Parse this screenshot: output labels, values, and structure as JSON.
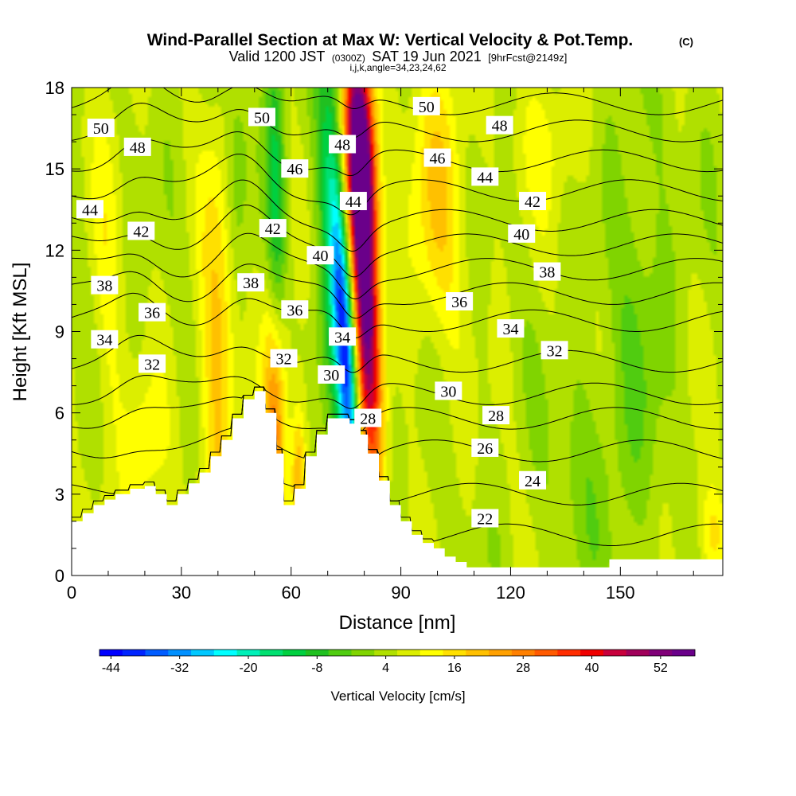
{
  "title": {
    "main": "Wind-Parallel Section at Max W: Vertical Velocity & Pot.Temp.",
    "copyright": "(C)",
    "valid_prefix": "Valid 1200 JST",
    "valid_utc": "(0300Z)",
    "valid_date": "SAT 19 Jun 2021",
    "forecast": "[9hrFcst@2149z]",
    "indices": "i,j,k,angle=34,23,24,62"
  },
  "chart_data": {
    "type": "heatmap",
    "xlabel": "Distance [nm]",
    "ylabel": "Height [Kft MSL]",
    "xlim": [
      0,
      178
    ],
    "ylim": [
      0,
      18
    ],
    "x_ticks": [
      0,
      30,
      60,
      90,
      120,
      150
    ],
    "y_ticks": [
      0,
      3,
      6,
      9,
      12,
      15,
      18
    ],
    "colorbar": {
      "label": "Vertical Velocity [cm/s]",
      "tick_labels": [
        "-44",
        "-32",
        "-20",
        "-8",
        "4",
        "16",
        "28",
        "40",
        "52"
      ],
      "colors": [
        "#0000ff",
        "#0024ff",
        "#005cff",
        "#0090ff",
        "#00c8ff",
        "#00ffff",
        "#00f0b8",
        "#00e070",
        "#00d040",
        "#20c020",
        "#50cc10",
        "#80d400",
        "#b0e000",
        "#dcee00",
        "#ffff00",
        "#ffe000",
        "#ffc000",
        "#ffa000",
        "#ff8000",
        "#ff5a00",
        "#ff2d00",
        "#f00000",
        "#c8003c",
        "#a0005a",
        "#800078",
        "#6a008a"
      ]
    },
    "terrain_kft": [
      [
        0,
        2.0
      ],
      [
        3,
        2.0
      ],
      [
        3,
        2.3
      ],
      [
        6,
        2.3
      ],
      [
        6,
        2.6
      ],
      [
        9,
        2.6
      ],
      [
        9,
        2.8
      ],
      [
        12,
        2.8
      ],
      [
        12,
        3.0
      ],
      [
        16,
        3.0
      ],
      [
        16,
        3.2
      ],
      [
        20,
        3.2
      ],
      [
        20,
        3.3
      ],
      [
        23,
        3.3
      ],
      [
        23,
        3.0
      ],
      [
        26,
        3.0
      ],
      [
        26,
        2.6
      ],
      [
        29,
        2.6
      ],
      [
        29,
        3.0
      ],
      [
        32,
        3.0
      ],
      [
        32,
        3.4
      ],
      [
        35,
        3.4
      ],
      [
        35,
        3.8
      ],
      [
        38,
        3.8
      ],
      [
        38,
        4.4
      ],
      [
        41,
        4.4
      ],
      [
        41,
        5.0
      ],
      [
        44,
        5.0
      ],
      [
        44,
        5.8
      ],
      [
        47,
        5.8
      ],
      [
        47,
        6.5
      ],
      [
        50,
        6.5
      ],
      [
        50,
        6.8
      ],
      [
        53,
        6.8
      ],
      [
        53,
        6.0
      ],
      [
        56,
        6.0
      ],
      [
        56,
        4.5
      ],
      [
        58,
        4.5
      ],
      [
        58,
        2.6
      ],
      [
        61,
        2.6
      ],
      [
        61,
        3.2
      ],
      [
        64,
        3.2
      ],
      [
        64,
        4.4
      ],
      [
        67,
        4.4
      ],
      [
        67,
        5.2
      ],
      [
        70,
        5.2
      ],
      [
        70,
        5.8
      ],
      [
        76,
        5.8
      ],
      [
        76,
        5.6
      ],
      [
        79,
        5.6
      ],
      [
        79,
        5.2
      ],
      [
        81,
        5.2
      ],
      [
        81,
        4.5
      ],
      [
        84,
        4.5
      ],
      [
        84,
        3.5
      ],
      [
        87,
        3.5
      ],
      [
        87,
        2.6
      ],
      [
        90,
        2.6
      ],
      [
        90,
        2.0
      ],
      [
        93,
        2.0
      ],
      [
        93,
        1.5
      ],
      [
        96,
        1.5
      ],
      [
        96,
        1.2
      ],
      [
        99,
        1.2
      ],
      [
        99,
        1.0
      ],
      [
        102,
        1.0
      ],
      [
        102,
        0.7
      ],
      [
        105,
        0.7
      ],
      [
        105,
        0.5
      ],
      [
        108,
        0.5
      ],
      [
        108,
        0.3
      ],
      [
        147,
        0.3
      ],
      [
        147,
        0.6
      ],
      [
        178,
        0.6
      ]
    ],
    "w_features": [
      {
        "x": 80,
        "y": 11.5,
        "sx": 2.5,
        "sy": 5.5,
        "slope": -0.3,
        "amp": 55
      },
      {
        "x": 79,
        "y": 15.5,
        "sx": 3.0,
        "sy": 2.5,
        "slope": -0.3,
        "amp": 35
      },
      {
        "x": 75,
        "y": 8.0,
        "sx": 2.0,
        "sy": 4.0,
        "slope": -0.4,
        "amp": -42
      },
      {
        "x": 71,
        "y": 14.0,
        "sx": 2.8,
        "sy": 5.0,
        "slope": -0.2,
        "amp": -18
      },
      {
        "x": 56,
        "y": 13.0,
        "sx": 1.8,
        "sy": 6.0,
        "slope": -0.1,
        "amp": -16
      },
      {
        "x": 56,
        "y": 6.0,
        "sx": 2.2,
        "sy": 3.5,
        "slope": 0.0,
        "amp": 26
      },
      {
        "x": 62,
        "y": 3.5,
        "sx": 1.4,
        "sy": 2.0,
        "slope": 0.0,
        "amp": 18
      },
      {
        "x": 40,
        "y": 8.0,
        "sx": 3.5,
        "sy": 5.5,
        "slope": 0.05,
        "amp": 15
      },
      {
        "x": 100,
        "y": 14.0,
        "sx": 5.5,
        "sy": 4.0,
        "slope": 0.0,
        "amp": 12
      },
      {
        "x": 20,
        "y": 4.5,
        "sx": 4.0,
        "sy": 2.0,
        "slope": 0.0,
        "amp": 8
      },
      {
        "x": 10,
        "y": 10.0,
        "sx": 3.0,
        "sy": 6.0,
        "slope": 0.0,
        "amp": 6
      },
      {
        "x": 45,
        "y": 15.0,
        "sx": 2.5,
        "sy": 3.0,
        "slope": 0.0,
        "amp": -8
      },
      {
        "x": 155,
        "y": 10.0,
        "sx": 6.0,
        "sy": 6.0,
        "slope": 0.0,
        "amp": -6
      },
      {
        "x": 140,
        "y": 4.0,
        "sx": 7.0,
        "sy": 3.0,
        "slope": 0.0,
        "amp": -5
      },
      {
        "x": 175,
        "y": 1.5,
        "sx": 3.0,
        "sy": 1.2,
        "slope": 0.0,
        "amp": 10
      },
      {
        "x": 130,
        "y": 16.0,
        "sx": 8.0,
        "sy": 2.0,
        "slope": 0.0,
        "amp": 5
      }
    ],
    "theta_contours": {
      "levels": [
        22,
        24,
        26,
        28,
        30,
        32,
        34,
        36,
        38,
        40,
        42,
        44,
        46,
        48,
        50
      ],
      "base_height_kft": [
        1.5,
        3.0,
        4.6,
        5.8,
        6.7,
        7.9,
        9.4,
        10.4,
        11.3,
        12.2,
        13.1,
        14.2,
        15.3,
        16.4,
        17.4
      ]
    },
    "contour_labels": [
      {
        "text": "50",
        "x": 8,
        "y": 16.5
      },
      {
        "text": "48",
        "x": 18,
        "y": 15.8
      },
      {
        "text": "44",
        "x": 5,
        "y": 13.5
      },
      {
        "text": "42",
        "x": 19,
        "y": 12.7
      },
      {
        "text": "38",
        "x": 9,
        "y": 10.7
      },
      {
        "text": "36",
        "x": 22,
        "y": 9.7
      },
      {
        "text": "34",
        "x": 9,
        "y": 8.7
      },
      {
        "text": "32",
        "x": 22,
        "y": 7.8
      },
      {
        "text": "50",
        "x": 52,
        "y": 16.9
      },
      {
        "text": "46",
        "x": 61,
        "y": 15.0
      },
      {
        "text": "42",
        "x": 55,
        "y": 12.8
      },
      {
        "text": "38",
        "x": 49,
        "y": 10.8
      },
      {
        "text": "36",
        "x": 61,
        "y": 9.8
      },
      {
        "text": "32",
        "x": 58,
        "y": 8.0
      },
      {
        "text": "40",
        "x": 68,
        "y": 11.8
      },
      {
        "text": "30",
        "x": 71,
        "y": 7.4
      },
      {
        "text": "48",
        "x": 74,
        "y": 15.9
      },
      {
        "text": "44",
        "x": 77,
        "y": 13.8
      },
      {
        "text": "34",
        "x": 74,
        "y": 8.8
      },
      {
        "text": "28",
        "x": 81,
        "y": 5.8
      },
      {
        "text": "50",
        "x": 97,
        "y": 17.3
      },
      {
        "text": "48",
        "x": 117,
        "y": 16.6
      },
      {
        "text": "46",
        "x": 100,
        "y": 15.4
      },
      {
        "text": "44",
        "x": 113,
        "y": 14.7
      },
      {
        "text": "42",
        "x": 126,
        "y": 13.8
      },
      {
        "text": "40",
        "x": 123,
        "y": 12.6
      },
      {
        "text": "38",
        "x": 130,
        "y": 11.2
      },
      {
        "text": "36",
        "x": 106,
        "y": 10.1
      },
      {
        "text": "34",
        "x": 120,
        "y": 9.1
      },
      {
        "text": "32",
        "x": 132,
        "y": 8.3
      },
      {
        "text": "30",
        "x": 103,
        "y": 6.8
      },
      {
        "text": "28",
        "x": 116,
        "y": 5.9
      },
      {
        "text": "26",
        "x": 113,
        "y": 4.7
      },
      {
        "text": "24",
        "x": 126,
        "y": 3.5
      },
      {
        "text": "22",
        "x": 113,
        "y": 2.1
      }
    ]
  }
}
